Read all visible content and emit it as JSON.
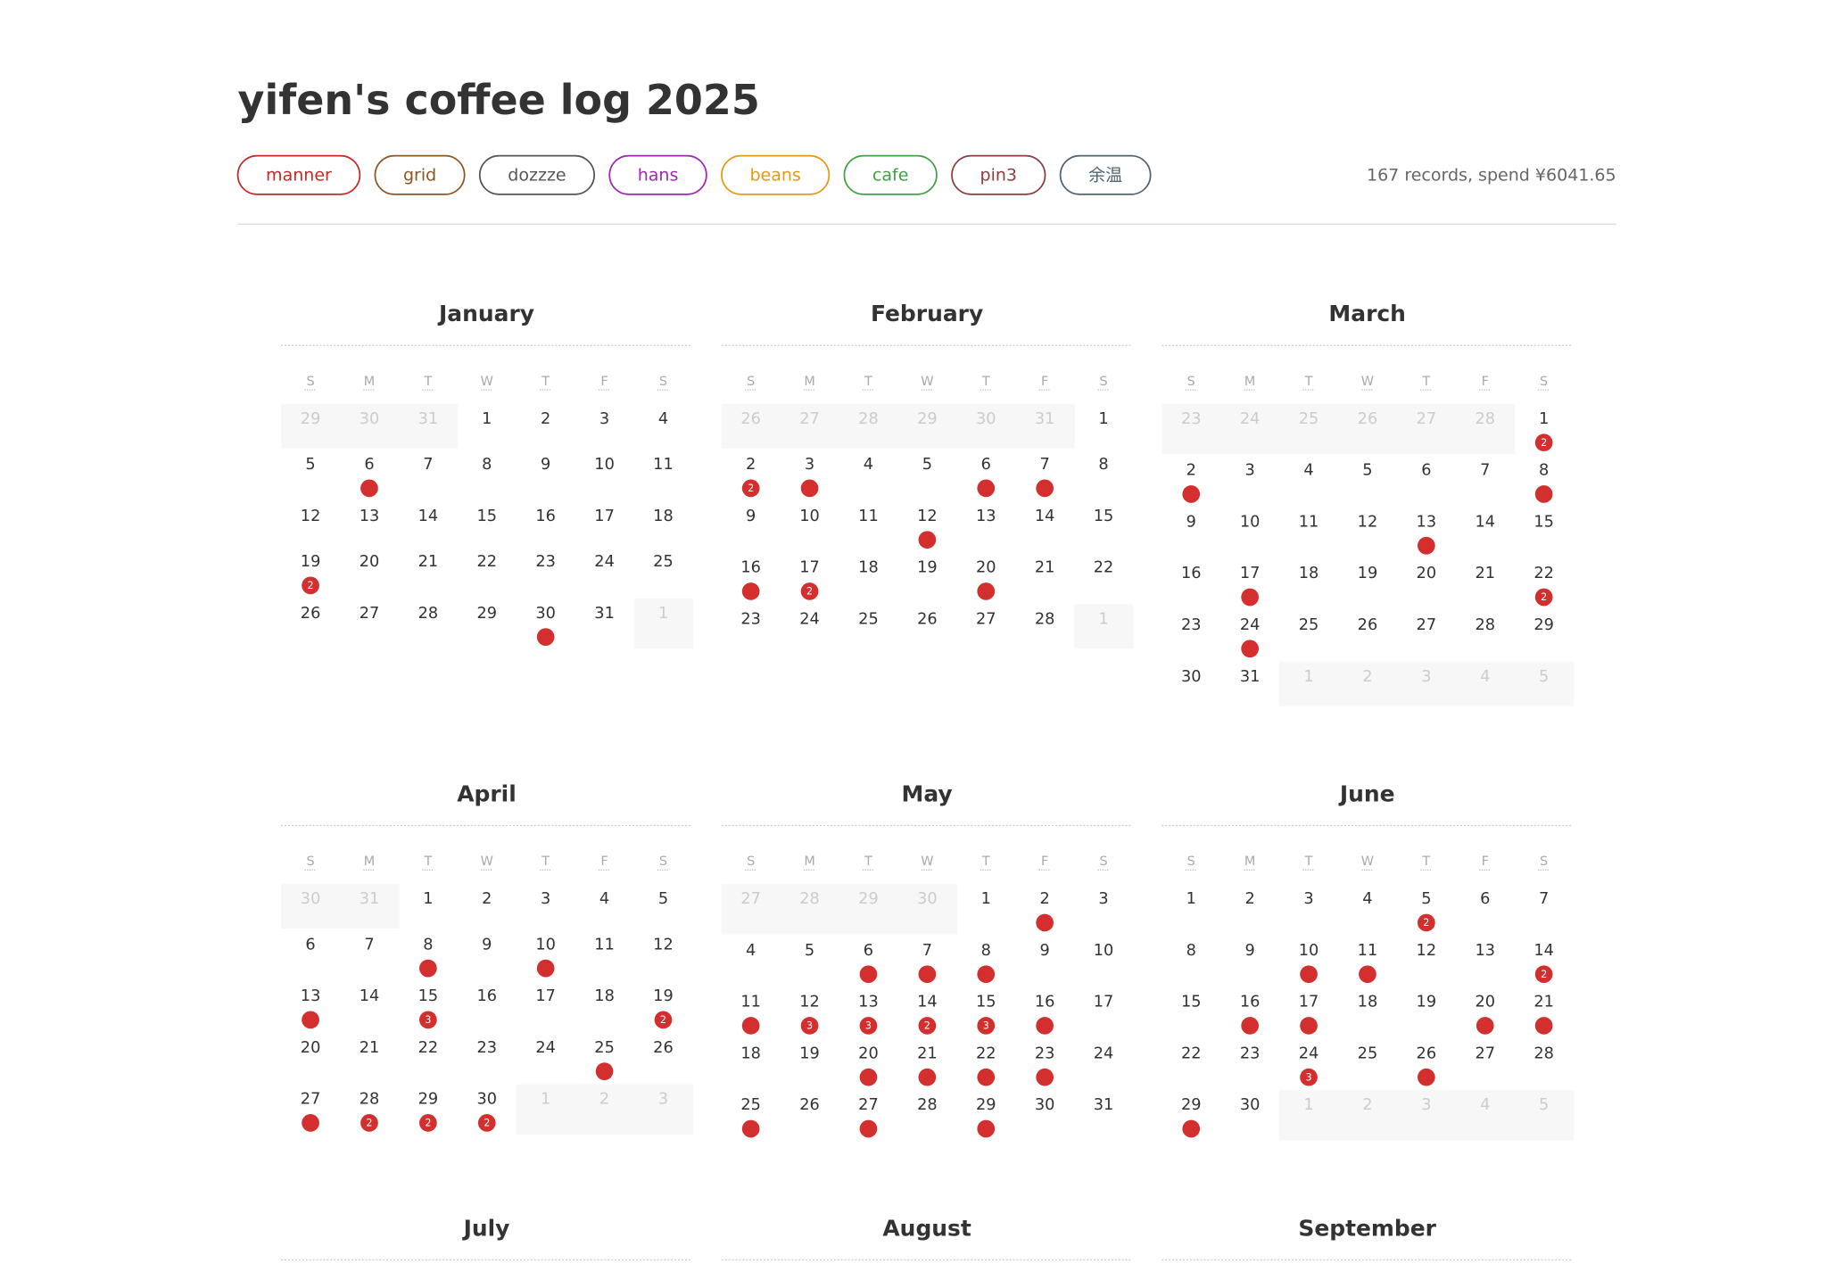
{
  "header": {
    "title": "yifen's coffee log 2025",
    "summary": "167 records, spend ¥6041.65",
    "tags": [
      {
        "label": "manner",
        "color": "#c62828"
      },
      {
        "label": "grid",
        "color": "#8d5524"
      },
      {
        "label": "dozzze",
        "color": "#555555"
      },
      {
        "label": "hans",
        "color": "#9c27b0"
      },
      {
        "label": "beans",
        "color": "#e39a12"
      },
      {
        "label": "cafe",
        "color": "#43a047"
      },
      {
        "label": "pin3",
        "color": "#8a3f3f"
      },
      {
        "label": "余温",
        "color": "#4f6472"
      }
    ]
  },
  "weekdays": [
    "S",
    "M",
    "T",
    "W",
    "T",
    "F",
    "S"
  ],
  "months": [
    {
      "name": "January",
      "lead": [
        29,
        30,
        31
      ],
      "days": [
        1,
        2,
        3,
        4,
        5,
        {
          "d": 6,
          "n": 1
        },
        7,
        8,
        9,
        10,
        11,
        12,
        13,
        14,
        15,
        16,
        17,
        18,
        {
          "d": 19,
          "n": 2
        },
        20,
        21,
        22,
        23,
        24,
        25,
        26,
        27,
        28,
        29,
        {
          "d": 30,
          "n": 1
        },
        31
      ],
      "trail": [
        1
      ]
    },
    {
      "name": "February",
      "lead": [
        26,
        27,
        28,
        29,
        30,
        31
      ],
      "days": [
        1,
        {
          "d": 2,
          "n": 2
        },
        {
          "d": 3,
          "n": 1
        },
        4,
        5,
        {
          "d": 6,
          "n": 1
        },
        {
          "d": 7,
          "n": 1
        },
        8,
        9,
        10,
        11,
        {
          "d": 12,
          "n": 1
        },
        13,
        14,
        15,
        {
          "d": 16,
          "n": 1
        },
        {
          "d": 17,
          "n": 2
        },
        18,
        19,
        {
          "d": 20,
          "n": 1
        },
        21,
        22,
        23,
        24,
        25,
        26,
        27,
        28
      ],
      "trail": [
        1
      ]
    },
    {
      "name": "March",
      "lead": [
        23,
        24,
        25,
        26,
        27,
        28
      ],
      "days": [
        {
          "d": 1,
          "n": 2
        },
        {
          "d": 2,
          "n": 1
        },
        3,
        4,
        5,
        6,
        7,
        {
          "d": 8,
          "n": 1
        },
        9,
        10,
        11,
        12,
        {
          "d": 13,
          "n": 1
        },
        14,
        15,
        16,
        {
          "d": 17,
          "n": 1
        },
        18,
        19,
        20,
        21,
        {
          "d": 22,
          "n": 2
        },
        23,
        {
          "d": 24,
          "n": 1
        },
        25,
        26,
        27,
        28,
        29,
        30,
        31
      ],
      "trail": [
        1,
        2,
        3,
        4,
        5
      ]
    },
    {
      "name": "April",
      "lead": [
        30,
        31
      ],
      "days": [
        1,
        2,
        3,
        4,
        5,
        6,
        7,
        {
          "d": 8,
          "n": 1
        },
        9,
        {
          "d": 10,
          "n": 1
        },
        11,
        12,
        {
          "d": 13,
          "n": 1
        },
        14,
        {
          "d": 15,
          "n": 3
        },
        16,
        17,
        18,
        {
          "d": 19,
          "n": 2
        },
        20,
        21,
        22,
        23,
        24,
        {
          "d": 25,
          "n": 1
        },
        26,
        {
          "d": 27,
          "n": 1
        },
        {
          "d": 28,
          "n": 2
        },
        {
          "d": 29,
          "n": 2
        },
        {
          "d": 30,
          "n": 2
        }
      ],
      "trail": [
        1,
        2,
        3
      ]
    },
    {
      "name": "May",
      "lead": [
        27,
        28,
        29,
        30
      ],
      "days": [
        1,
        {
          "d": 2,
          "n": 1
        },
        3,
        4,
        5,
        {
          "d": 6,
          "n": 1
        },
        {
          "d": 7,
          "n": 1
        },
        {
          "d": 8,
          "n": 1
        },
        9,
        10,
        {
          "d": 11,
          "n": 1
        },
        {
          "d": 12,
          "n": 3
        },
        {
          "d": 13,
          "n": 3
        },
        {
          "d": 14,
          "n": 2
        },
        {
          "d": 15,
          "n": 3
        },
        {
          "d": 16,
          "n": 1
        },
        17,
        18,
        19,
        {
          "d": 20,
          "n": 1
        },
        {
          "d": 21,
          "n": 1
        },
        {
          "d": 22,
          "n": 1
        },
        {
          "d": 23,
          "n": 1
        },
        24,
        {
          "d": 25,
          "n": 1
        },
        26,
        {
          "d": 27,
          "n": 1
        },
        28,
        {
          "d": 29,
          "n": 1
        },
        30,
        31
      ]
    },
    {
      "name": "June",
      "lead": [],
      "days": [
        1,
        2,
        3,
        4,
        {
          "d": 5,
          "n": 2
        },
        6,
        7,
        8,
        9,
        {
          "d": 10,
          "n": 1
        },
        {
          "d": 11,
          "n": 1
        },
        12,
        13,
        {
          "d": 14,
          "n": 2
        },
        15,
        {
          "d": 16,
          "n": 1
        },
        {
          "d": 17,
          "n": 1
        },
        18,
        19,
        {
          "d": 20,
          "n": 1
        },
        {
          "d": 21,
          "n": 1
        },
        22,
        23,
        {
          "d": 24,
          "n": 3
        },
        25,
        {
          "d": 26,
          "n": 1
        },
        27,
        28,
        {
          "d": 29,
          "n": 1
        },
        30
      ],
      "trail": [
        1,
        2,
        3,
        4,
        5
      ]
    },
    {
      "name": "July"
    },
    {
      "name": "August"
    },
    {
      "name": "September"
    }
  ]
}
